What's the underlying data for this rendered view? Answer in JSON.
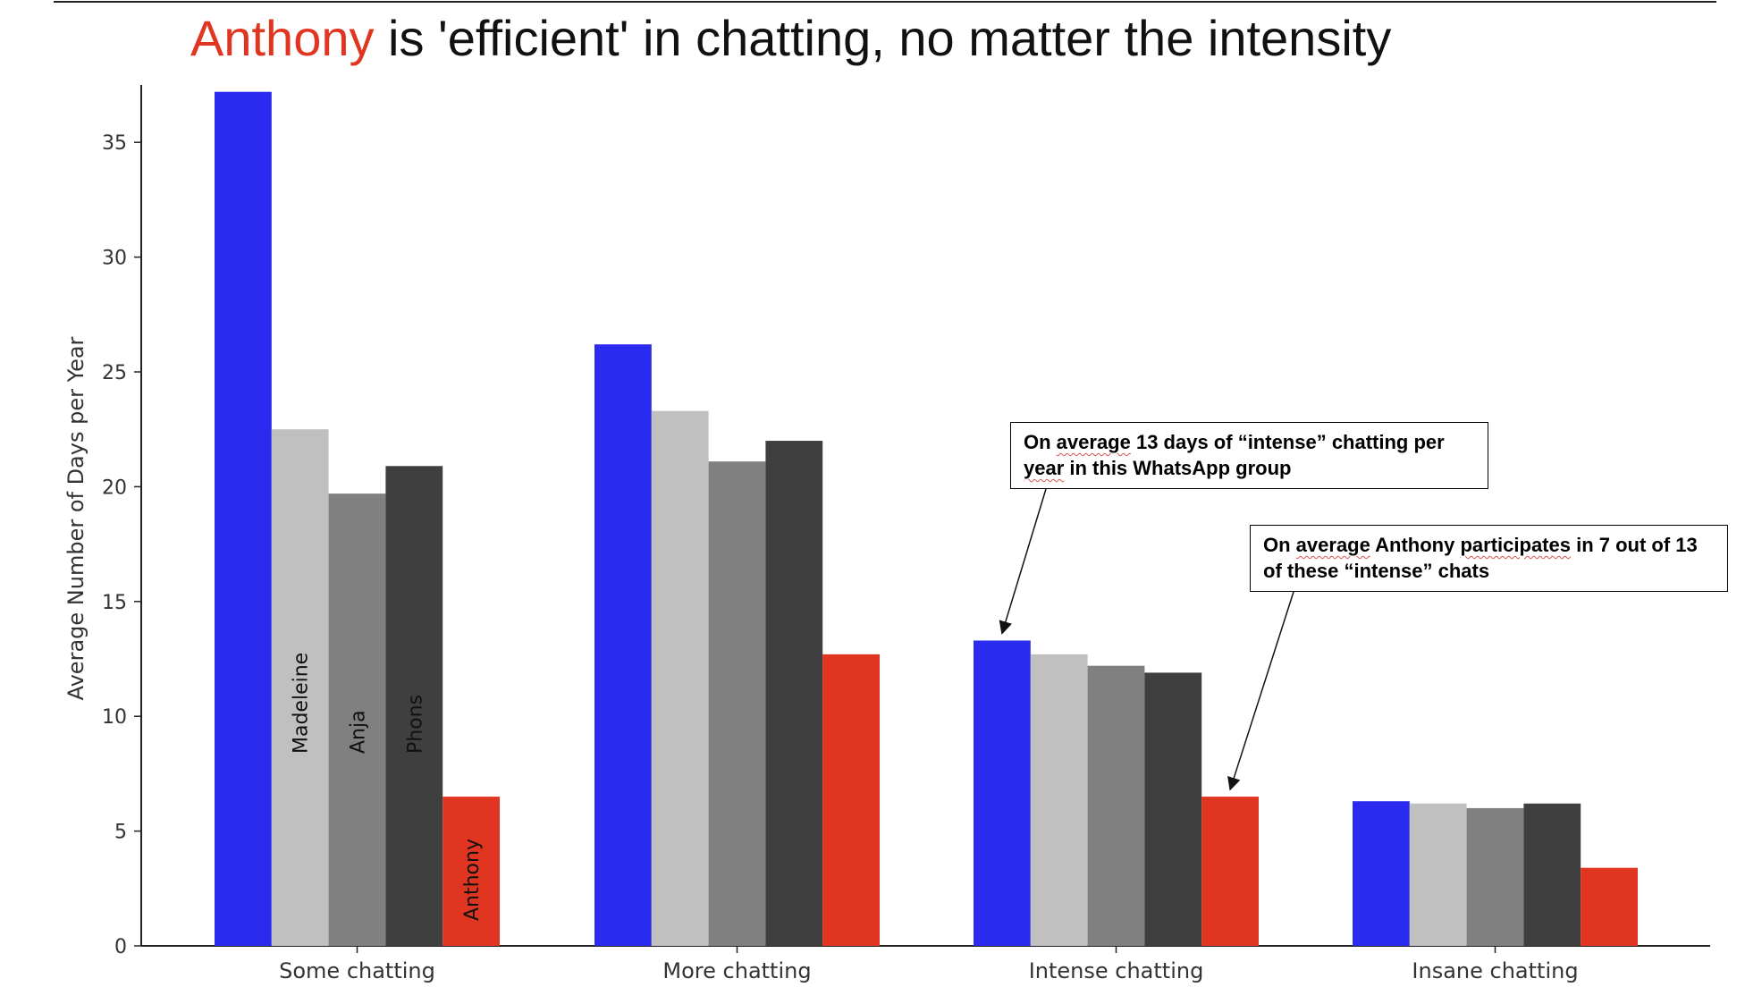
{
  "chart_data": {
    "type": "bar",
    "title": {
      "highlight": "Anthony",
      "rest": " is 'efficient' in chatting, no matter the intensity"
    },
    "ylabel": "Average Number of Days per Year",
    "xlabel": "",
    "ylim": [
      0,
      37.5
    ],
    "yticks": [
      0,
      5,
      10,
      15,
      20,
      25,
      30,
      35
    ],
    "categories": [
      "Some chatting",
      "More chatting",
      "Intense chatting",
      "Insane chatting"
    ],
    "series": [
      {
        "values": [
          37.2,
          26.2,
          13.3,
          6.3
        ],
        "color": "#2b2bef"
      },
      {
        "name": "Madeleine",
        "values": [
          22.5,
          23.3,
          12.7,
          6.2
        ],
        "color": "#c0c0c0"
      },
      {
        "name": "Anja",
        "values": [
          19.7,
          21.1,
          12.2,
          6.0
        ],
        "color": "#808080"
      },
      {
        "name": "Phons",
        "values": [
          20.9,
          22.0,
          11.9,
          6.2
        ],
        "color": "#3f3f3f"
      },
      {
        "name": "Anthony",
        "values": [
          6.5,
          12.7,
          6.5,
          3.4
        ],
        "color": "#e03621"
      }
    ],
    "highlight_color": "#e03621",
    "grid": false,
    "annotations": [
      {
        "text_parts": [
          "On ",
          "average",
          " 13 days of “intense” chatting per ",
          "year",
          " in this WhatsApp group"
        ],
        "underlined": [
          1,
          3
        ],
        "target_category": 2,
        "target_series": 0
      },
      {
        "text_parts": [
          "On ",
          "average",
          " Anthony ",
          "participates",
          " in 7 out of 13 of these “intense” chats"
        ],
        "underlined": [
          1,
          3
        ],
        "target_category": 2,
        "target_series": 4
      }
    ]
  }
}
